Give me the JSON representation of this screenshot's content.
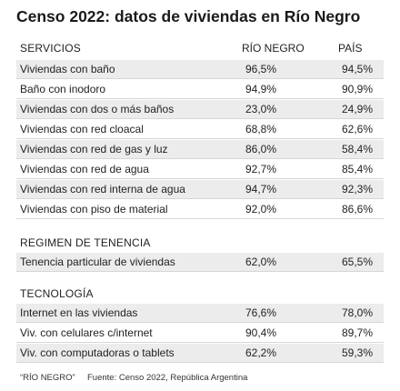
{
  "title": "Censo 2022: datos de viviendas en Río Negro",
  "columns": [
    "RÍO NEGRO",
    "PAÍS"
  ],
  "sections": [
    {
      "title": "SERVICIOS",
      "rows": [
        [
          "Viviendas con baño",
          "96,5%",
          "94,5%"
        ],
        [
          "Baño con inodoro",
          "94,9%",
          "90,9%"
        ],
        [
          "Viviendas con dos o más baños",
          "23,0%",
          "24,9%"
        ],
        [
          "Viviendas con red cloacal",
          "68,8%",
          "62,6%"
        ],
        [
          "Viviendas con red de gas y luz",
          "86,0%",
          "58,4%"
        ],
        [
          "Viviendas con red de agua",
          "92,7%",
          "85,4%"
        ],
        [
          "Viviendas con red interna de agua",
          "94,7%",
          "92,3%"
        ],
        [
          "Viviendas con piso de material",
          "92,0%",
          "86,6%"
        ]
      ]
    },
    {
      "title": "REGIMEN DE TENENCIA",
      "rows": [
        [
          "Tenencia particular de viviendas",
          "62,0%",
          "65,5%"
        ]
      ]
    },
    {
      "title": "TECNOLOGÍA",
      "rows": [
        [
          "Internet en las viviendas",
          "76,6%",
          "78,0%"
        ],
        [
          "Viv. con celulares c/internet",
          "90,4%",
          "89,7%"
        ],
        [
          "Viv. con computadoras o tablets",
          "62,2%",
          "59,3%"
        ]
      ]
    }
  ],
  "footer": {
    "note": "“RÍO NEGRO”",
    "source": "Fuente: Censo 2022, República Argentina"
  }
}
